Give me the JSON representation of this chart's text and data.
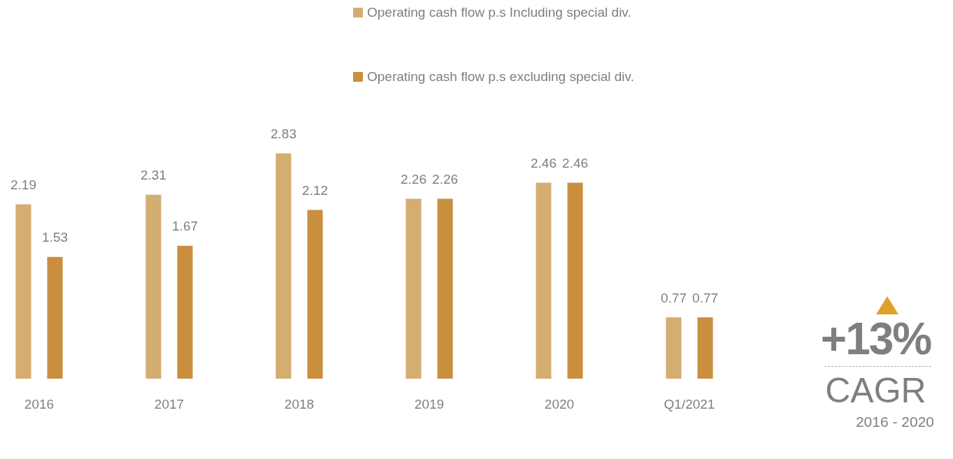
{
  "chart_data": {
    "type": "bar",
    "categories": [
      "2016",
      "2017",
      "2018",
      "2019",
      "2020",
      "Q1/2021"
    ],
    "series": [
      {
        "name": "Operating cash flow p.s Including special div.",
        "color": "#d4ad70",
        "values": [
          2.19,
          2.31,
          2.83,
          2.26,
          2.46,
          0.77
        ]
      },
      {
        "name": "Operating cash flow p.s excluding special div.",
        "color": "#c98f3f",
        "values": [
          1.53,
          1.67,
          2.12,
          2.26,
          2.46,
          0.77
        ]
      }
    ],
    "data_labels": true,
    "grid": false,
    "legend": "top",
    "tick_labels": "x",
    "annotations": [
      "+13%",
      "CAGR",
      "2016 - 2020"
    ]
  }
}
